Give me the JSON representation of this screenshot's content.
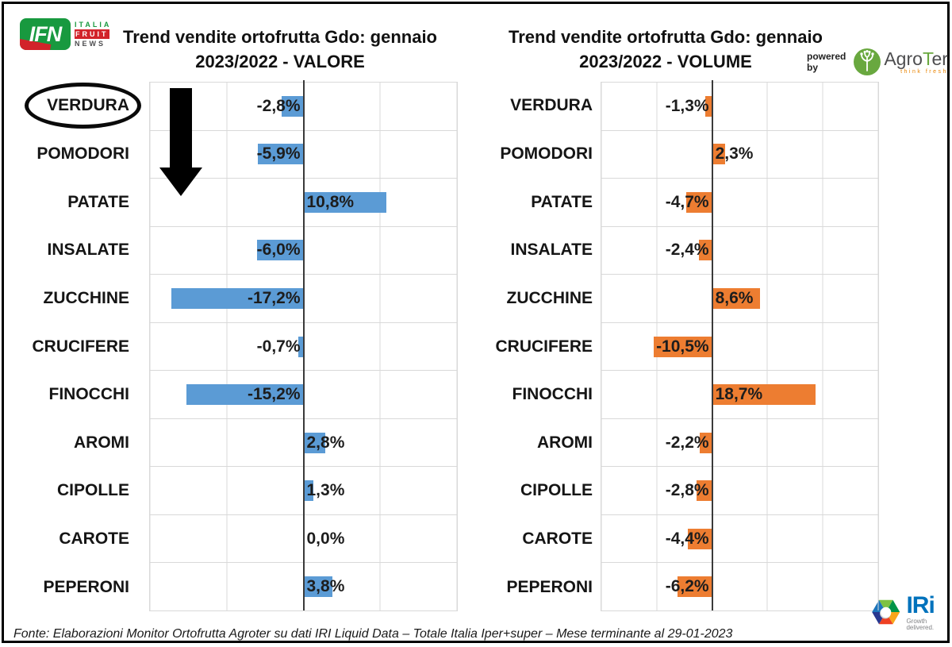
{
  "header_left": {
    "ifn_logo": {
      "box_text": "IFN",
      "stack": [
        "ITALIA",
        "FRUIT",
        "NEWS"
      ]
    }
  },
  "header_right": {
    "powered_by": "powered by",
    "agroter": {
      "part_agro": "Agro",
      "part_t": "T",
      "part_er": "er",
      "tagline": "think fresh"
    }
  },
  "chart_data": [
    {
      "type": "bar",
      "orientation": "horizontal",
      "title_lines": [
        "Trend vendite ortofrutta Gdo: gennaio",
        "2023/2022 - VALORE"
      ],
      "title": "Trend vendite ortofrutta Gdo: gennaio 2023/2022 - VALORE",
      "categories": [
        "VERDURA",
        "POMODORI",
        "PATATE",
        "INSALATE",
        "ZUCCHINE",
        "CRUCIFERE",
        "FINOCCHI",
        "AROMI",
        "CIPOLLE",
        "CAROTE",
        "PEPERONI"
      ],
      "values": [
        -2.8,
        -5.9,
        10.8,
        -6.0,
        -17.2,
        -0.7,
        -15.2,
        2.8,
        1.3,
        0.0,
        3.8
      ],
      "labels": [
        "-2,8%",
        "-5,9%",
        "10,8%",
        "-6,0%",
        "-17,2%",
        "-0,7%",
        "-15,2%",
        "2,8%",
        "1,3%",
        "0,0%",
        "3,8%"
      ],
      "bar_color": "#5B9BD5",
      "xlim": [
        -20,
        20
      ],
      "grid_step": 10,
      "grid_color": "#D9D9D9",
      "axis_color": "#3A3A3A",
      "grid": true,
      "legend": false
    },
    {
      "type": "bar",
      "orientation": "horizontal",
      "title_lines": [
        "Trend vendite ortofrutta Gdo: gennaio",
        "2023/2022 - VOLUME"
      ],
      "title": "Trend vendite ortofrutta Gdo: gennaio 2023/2022 - VOLUME",
      "categories": [
        "VERDURA",
        "POMODORI",
        "PATATE",
        "INSALATE",
        "ZUCCHINE",
        "CRUCIFERE",
        "FINOCCHI",
        "AROMI",
        "CIPOLLE",
        "CAROTE",
        "PEPERONI"
      ],
      "values": [
        -1.3,
        2.3,
        -4.7,
        -2.4,
        8.6,
        -10.5,
        18.7,
        -2.2,
        -2.8,
        -4.4,
        -6.2
      ],
      "labels": [
        "-1,3%",
        "2,3%",
        "-4,7%",
        "-2,4%",
        "8,6%",
        "-10,5%",
        "18,7%",
        "-2,2%",
        "-2,8%",
        "-4,4%",
        "-6,2%"
      ],
      "bar_color": "#ED7D31",
      "xlim": [
        -20,
        30
      ],
      "grid_step": 10,
      "grid_color": "#D9D9D9",
      "axis_color": "#3A3A3A",
      "grid": true,
      "legend": false
    }
  ],
  "annotations": {
    "circled_category": "VERDURA",
    "arrow_direction": "down"
  },
  "footer": {
    "source": "Fonte: Elaborazioni Monitor Ortofrutta Agroter su dati IRI Liquid Data – Totale Italia Iper+super – Mese terminante al 29-01-2023"
  },
  "iri_logo": {
    "name": "IRi",
    "tagline": "Growth delivered."
  }
}
